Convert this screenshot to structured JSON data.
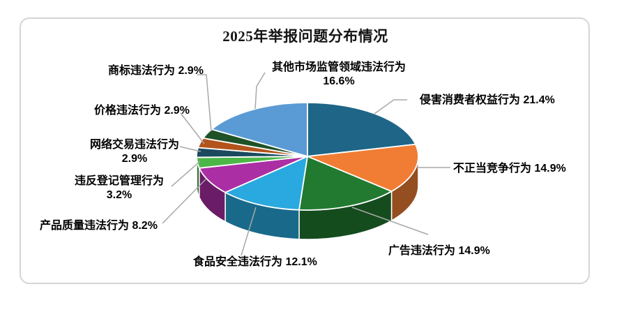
{
  "card": {
    "title": "2025年举报问题分布情况"
  },
  "chart_data": {
    "type": "pie",
    "is_3d": true,
    "title": "2025年举报问题分布情况",
    "unit": "%",
    "start_angle_deg": 0,
    "direction": "clockwise",
    "total": 100.0,
    "legend_position": "none",
    "leader_line_color": "#a8a8a8",
    "label_text_color": "#000000",
    "border_color": "#d5d5d5",
    "slices": [
      {
        "label": "侵害消费者权益行为",
        "value": 21.4,
        "display": "侵害消费者权益行为 21.4%",
        "color": "#1F6587"
      },
      {
        "label": "不正当竞争行为",
        "value": 14.9,
        "display": "不正当竞争行为 14.9%",
        "color": "#F07D33"
      },
      {
        "label": "广告违法行为",
        "value": 14.9,
        "display": "广告违法行为 14.9%",
        "color": "#217A30"
      },
      {
        "label": "食品安全违法行为",
        "value": 12.1,
        "display": "食品安全违法行为 12.1%",
        "color": "#29A9DF"
      },
      {
        "label": "产品质量违法行为",
        "value": 8.2,
        "display": "产品质量违法行为 8.2%",
        "color": "#AB2EA4"
      },
      {
        "label": "违反登记管理行为",
        "value": 3.2,
        "display": "违反登记管理行为\n3.2%",
        "color": "#4CB747"
      },
      {
        "label": "网络交易违法行为",
        "value": 2.9,
        "display": "网络交易违法行为\n2.9%",
        "color": "#1B4A5F"
      },
      {
        "label": "价格违法行为",
        "value": 2.9,
        "display": "价格违法行为 2.9%",
        "color": "#B2541C"
      },
      {
        "label": "商标违法行为",
        "value": 2.9,
        "display": "商标违法行为 2.9%",
        "color": "#1F5227"
      },
      {
        "label": "其他市场监管领域违法行为",
        "value": 16.6,
        "display": "其他市场监管领域违法行为\n16.6%",
        "color": "#5B9BD5"
      }
    ]
  }
}
